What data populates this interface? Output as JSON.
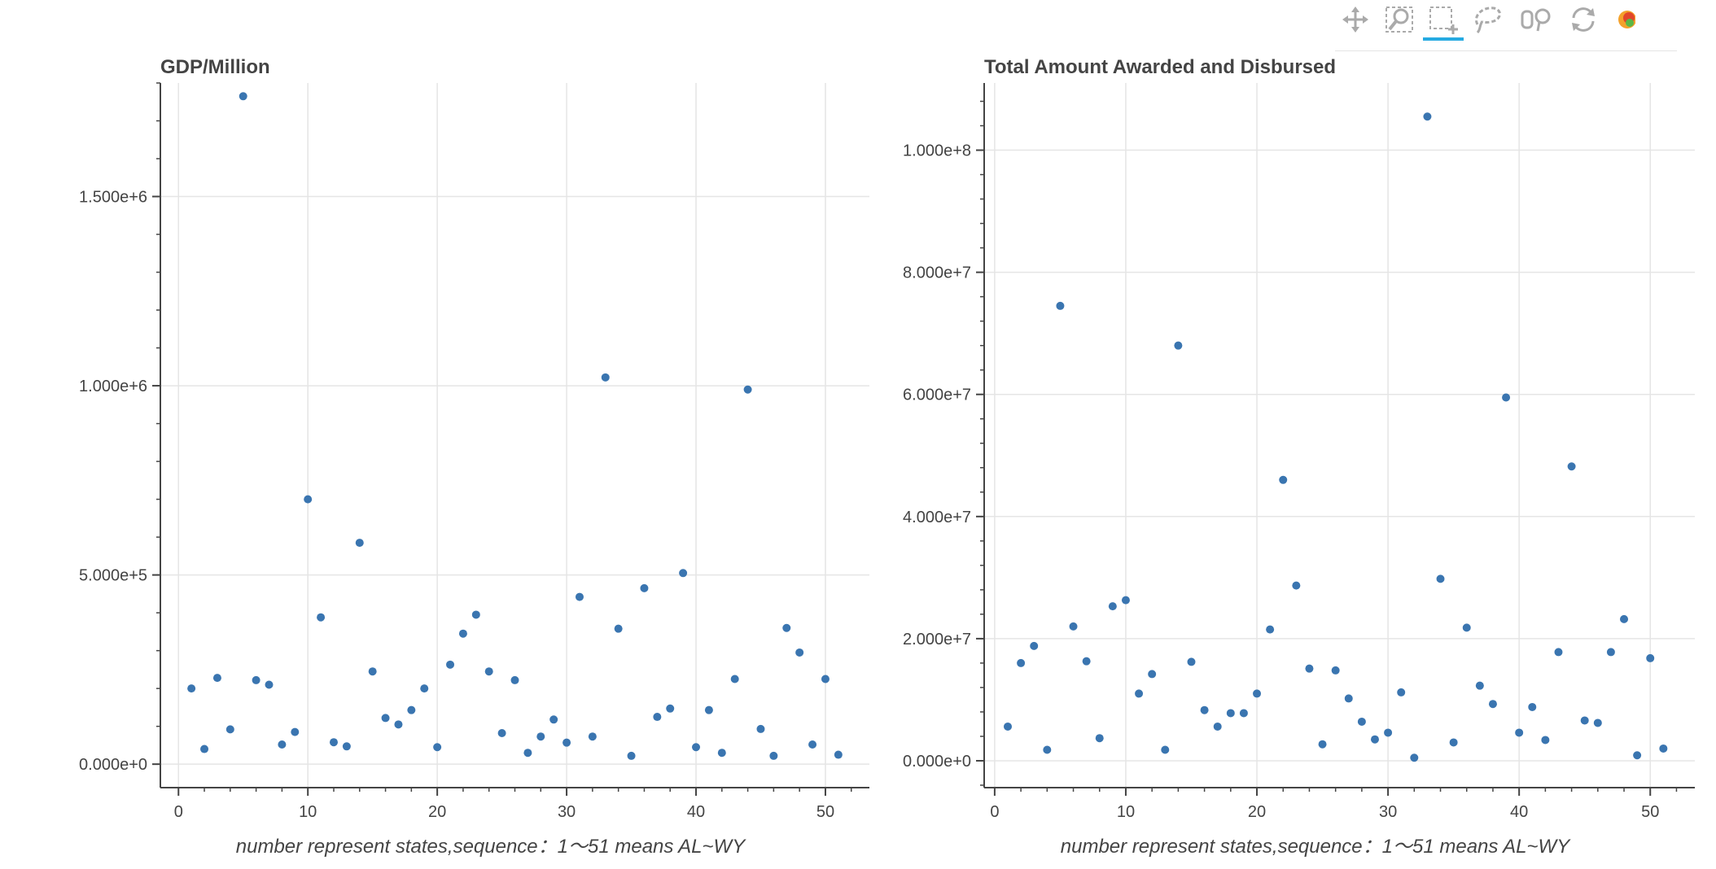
{
  "toolbar": {
    "tools": [
      {
        "name": "pan-tool",
        "icon": "pan-icon",
        "active": false
      },
      {
        "name": "wheel-zoom-tool",
        "icon": "wheel-zoom-icon",
        "active": false
      },
      {
        "name": "box-select-tool",
        "icon": "box-select-icon",
        "active": true
      },
      {
        "name": "lasso-select-tool",
        "icon": "lasso-select-icon",
        "active": false
      },
      {
        "name": "hover-tool",
        "icon": "hover-icon",
        "active": false
      },
      {
        "name": "reset-tool",
        "icon": "reset-icon",
        "active": false
      },
      {
        "name": "bokeh-logo",
        "icon": "bokeh-logo-icon",
        "active": false
      }
    ]
  },
  "colors": {
    "point": "#3a75b0",
    "grid": "#e5e5e5",
    "axis": "#444444",
    "text": "#444444"
  },
  "chart_data": [
    {
      "type": "scatter",
      "title": "GDP/Million",
      "xlabel": "number represent states,sequence：1～51 means AL~WY",
      "ylabel": "",
      "xlim": [
        -1.4,
        53.4
      ],
      "ylim": [
        -62000,
        1800000
      ],
      "xticks": [
        0,
        10,
        20,
        30,
        40,
        50
      ],
      "xtick_labels": [
        "0",
        "10",
        "20",
        "30",
        "40",
        "50"
      ],
      "yticks": [
        0,
        500000,
        1000000,
        1500000
      ],
      "ytick_labels": [
        "0.000e+0",
        "5.000e+5",
        "1.000e+6",
        "1.500e+6"
      ],
      "y_minor_step": 100000,
      "grid": true,
      "x": [
        1,
        2,
        3,
        4,
        5,
        6,
        7,
        8,
        9,
        10,
        11,
        12,
        13,
        14,
        15,
        16,
        17,
        18,
        19,
        20,
        21,
        22,
        23,
        24,
        25,
        26,
        27,
        28,
        29,
        30,
        31,
        32,
        33,
        34,
        35,
        36,
        37,
        38,
        39,
        40,
        41,
        42,
        43,
        44,
        45,
        46,
        47,
        48,
        49,
        50,
        51
      ],
      "y": [
        200000,
        40000,
        228000,
        92000,
        1765000,
        222000,
        210000,
        52000,
        85000,
        700000,
        388000,
        58000,
        47000,
        585000,
        245000,
        122000,
        105000,
        143000,
        200000,
        45000,
        263000,
        345000,
        395000,
        245000,
        82000,
        222000,
        30000,
        73000,
        118000,
        57000,
        442000,
        73000,
        1022000,
        358000,
        22000,
        465000,
        125000,
        147000,
        505000,
        45000,
        143000,
        30000,
        225000,
        990000,
        93000,
        22000,
        360000,
        295000,
        52000,
        225000,
        25000
      ]
    },
    {
      "type": "scatter",
      "title": "Total Amount Awarded and Disbursed",
      "xlabel": "number represent states,sequence：1～51 means AL~WY",
      "ylabel": "",
      "xlim": [
        -0.8,
        53.4
      ],
      "ylim": [
        -4400000,
        111000000
      ],
      "xticks": [
        0,
        10,
        20,
        30,
        40,
        50
      ],
      "xtick_labels": [
        "0",
        "10",
        "20",
        "30",
        "40",
        "50"
      ],
      "yticks": [
        0,
        20000000,
        40000000,
        60000000,
        80000000,
        100000000
      ],
      "ytick_labels": [
        "0.000e+0",
        "2.000e+7",
        "4.000e+7",
        "6.000e+7",
        "8.000e+7",
        "1.000e+8"
      ],
      "y_minor_step": 4000000,
      "grid": true,
      "x": [
        1,
        2,
        3,
        4,
        5,
        6,
        7,
        8,
        9,
        10,
        11,
        12,
        13,
        14,
        15,
        16,
        17,
        18,
        19,
        20,
        21,
        22,
        23,
        24,
        25,
        26,
        27,
        28,
        29,
        30,
        31,
        32,
        33,
        34,
        35,
        36,
        37,
        38,
        39,
        40,
        41,
        42,
        43,
        44,
        45,
        46,
        47,
        48,
        49,
        50,
        51
      ],
      "y": [
        5600000,
        16000000,
        18800000,
        1800000,
        74500000,
        22000000,
        16300000,
        3700000,
        25300000,
        26300000,
        11000000,
        14200000,
        1800000,
        68000000,
        16200000,
        8300000,
        5600000,
        7800000,
        7800000,
        11000000,
        21500000,
        46000000,
        28700000,
        15100000,
        2700000,
        14800000,
        10200000,
        6400000,
        3500000,
        4600000,
        11200000,
        500000,
        105500000,
        29800000,
        3000000,
        21800000,
        12300000,
        9300000,
        59500000,
        4600000,
        8800000,
        3400000,
        17800000,
        48200000,
        6600000,
        6200000,
        17800000,
        23200000,
        900000,
        16800000,
        2000000
      ]
    }
  ]
}
